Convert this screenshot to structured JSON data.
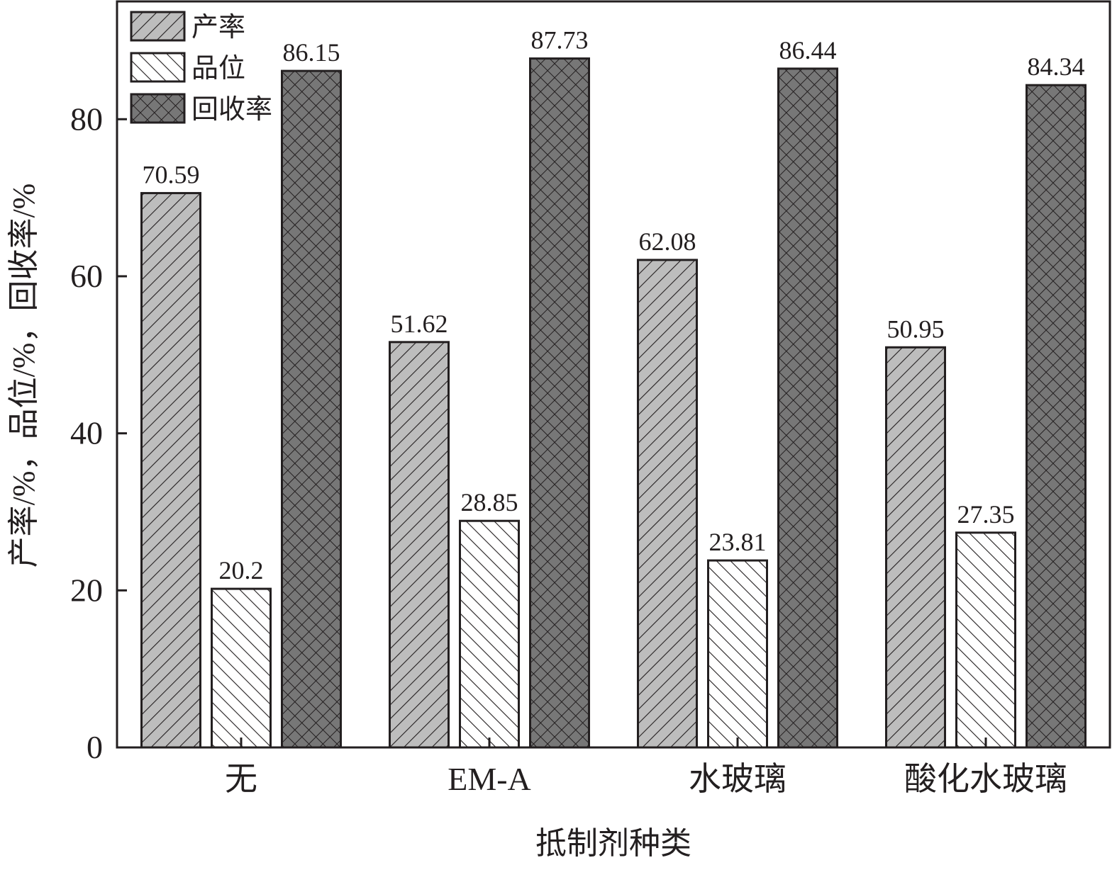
{
  "chart_data": {
    "type": "bar",
    "title": "",
    "xlabel": "抵制剂种类",
    "ylabel": "产率/%，品位/%，回收率/%",
    "categories": [
      "无",
      "EM-A",
      "水玻璃",
      "酸化水玻璃"
    ],
    "series": [
      {
        "name": "产率",
        "values": [
          70.59,
          51.62,
          62.08,
          50.95
        ],
        "pattern": "diagonal-forward",
        "color": "#bdbdbd"
      },
      {
        "name": "品位",
        "values": [
          20.2,
          28.85,
          23.81,
          27.35
        ],
        "pattern": "diagonal-back",
        "color": "#ffffff"
      },
      {
        "name": "回收率",
        "values": [
          86.15,
          87.73,
          86.44,
          84.34
        ],
        "pattern": "crosshatch",
        "color": "#777777"
      }
    ],
    "value_labels": [
      [
        "70.59",
        "51.62",
        "62.08",
        "50.95"
      ],
      [
        "20.2",
        "28.85",
        "23.81",
        "27.35"
      ],
      [
        "86.15",
        "87.73",
        "86.44",
        "84.34"
      ]
    ],
    "ylim": [
      0,
      95
    ],
    "yticks": [
      0,
      20,
      40,
      60,
      80
    ],
    "ytick_labels": [
      "0",
      "20",
      "40",
      "60",
      "80"
    ],
    "grid": false,
    "legend_position": "top-left"
  }
}
